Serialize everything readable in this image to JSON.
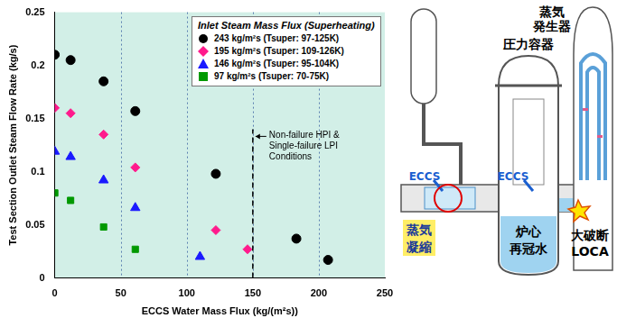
{
  "chart_data": {
    "type": "scatter",
    "x_label": "ECCS Water Mass Flux (kg/(m²s))",
    "y_label": "Test Section Outlet Steam Flow Rate (kg/s)",
    "legend_title": "Inlet Steam Mass Flux (Superheating)",
    "legend": "top-right",
    "grid": "x",
    "xlim": [
      0,
      250
    ],
    "xticks": [
      0,
      50,
      100,
      150,
      200,
      250
    ],
    "ylim": [
      0,
      0.25
    ],
    "yticks": [
      0,
      0.05,
      0.1,
      0.15,
      0.2,
      0.25
    ],
    "series": [
      {
        "name": "243 kg/m²s (Tsuper: 97-125K)",
        "color": "#000000",
        "marker": "circle",
        "x": [
          0,
          12,
          37,
          61,
          122,
          183,
          207
        ],
        "values": [
          0.21,
          0.205,
          0.185,
          0.157,
          0.098,
          0.037,
          0.017
        ]
      },
      {
        "name": "195 kg/m²s (Tsuper: 109-126K)",
        "color": "#ff1a8c",
        "marker": "diamond",
        "x": [
          0,
          12,
          37,
          61,
          122,
          146
        ],
        "values": [
          0.16,
          0.155,
          0.135,
          0.104,
          0.045,
          0.027
        ]
      },
      {
        "name": "146 kg/m²s (Tsuper: 95-104K)",
        "color": "#1a1aff",
        "marker": "triangle",
        "x": [
          0,
          12,
          37,
          61,
          110
        ],
        "values": [
          0.119,
          0.114,
          0.092,
          0.066,
          0.02
        ]
      },
      {
        "name": "97 kg/m²s (Tsuper: 70-75K)",
        "color": "#009900",
        "marker": "square",
        "x": [
          0,
          12,
          37,
          61
        ],
        "values": [
          0.08,
          0.073,
          0.048,
          0.027
        ]
      }
    ],
    "annotations": [
      {
        "text": "Non-failure HPI & Single-failure LPI Conditions",
        "x": 150,
        "line_style": "dashed"
      }
    ]
  },
  "diagram": {
    "steam_generator": [
      "蒸気",
      "発生器"
    ],
    "pressure_vessel": "圧力容器",
    "eccs": [
      "ECCS",
      "ECCS"
    ],
    "steam_condensation": [
      "蒸気",
      "凝縮"
    ],
    "core_reflood": [
      "炉心",
      "再冠水"
    ],
    "large_break_loca": [
      "大破断",
      "LOCA"
    ]
  }
}
